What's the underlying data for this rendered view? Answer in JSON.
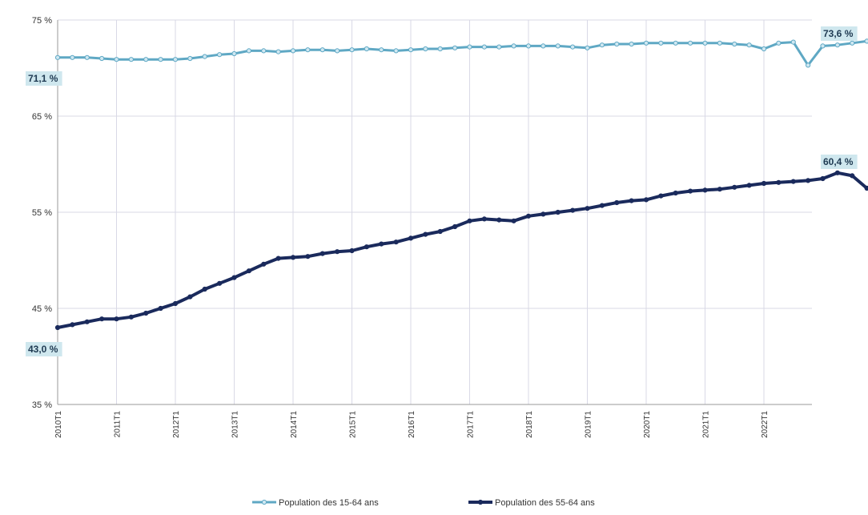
{
  "chart_data": {
    "type": "line",
    "title": "",
    "xlabel": "",
    "ylabel": "",
    "ylim": [
      35,
      75
    ],
    "y_ticks": [
      "35 %",
      "45 %",
      "55 %",
      "65 %",
      "75 %"
    ],
    "y_tick_values": [
      35,
      45,
      55,
      65,
      75
    ],
    "x_ticks": [
      "2010T1",
      "2011T1",
      "2012T1",
      "2013T1",
      "2014T1",
      "2015T1",
      "2016T1",
      "2017T1",
      "2018T1",
      "2019T1",
      "2020T1",
      "2021T1",
      "2022T1"
    ],
    "grid": true,
    "legend_position": "bottom",
    "series": [
      {
        "name": "Population des 15-64 ans",
        "color": "#5fa8c4",
        "start_label": "71,1 %",
        "end_label": "73,6 %",
        "values": [
          71.1,
          71.1,
          71.1,
          71.0,
          70.9,
          70.9,
          70.9,
          70.9,
          70.9,
          71.0,
          71.2,
          71.4,
          71.5,
          71.8,
          71.8,
          71.7,
          71.8,
          71.9,
          71.9,
          71.8,
          71.9,
          72.0,
          71.9,
          71.8,
          71.9,
          72.0,
          72.0,
          72.1,
          72.2,
          72.2,
          72.2,
          72.3,
          72.3,
          72.3,
          72.3,
          72.2,
          72.1,
          72.4,
          72.5,
          72.5,
          72.6,
          72.6,
          72.6,
          72.6,
          72.6,
          72.6,
          72.5,
          72.4,
          72.0,
          72.6,
          72.7,
          70.3,
          72.3,
          72.4,
          72.6,
          72.8,
          72.9,
          73.1,
          73.2,
          73.3,
          73.4,
          73.5,
          73.6,
          73.6,
          73.6
        ]
      },
      {
        "name": "Population des 55-64 ans",
        "color": "#1a2a5c",
        "start_label": "43,0 %",
        "end_label": "60,4 %",
        "values": [
          43.0,
          43.3,
          43.6,
          43.9,
          43.9,
          44.1,
          44.5,
          45.0,
          45.5,
          46.2,
          47.0,
          47.6,
          48.2,
          48.9,
          49.6,
          50.2,
          50.3,
          50.4,
          50.7,
          50.9,
          51.0,
          51.4,
          51.7,
          51.9,
          52.3,
          52.7,
          53.0,
          53.5,
          54.1,
          54.3,
          54.2,
          54.1,
          54.6,
          54.8,
          55.0,
          55.2,
          55.4,
          55.7,
          56.0,
          56.2,
          56.3,
          56.7,
          57.0,
          57.2,
          57.3,
          57.4,
          57.6,
          57.8,
          58.0,
          58.1,
          58.2,
          58.3,
          58.5,
          59.1,
          58.8,
          57.5,
          58.3,
          59.0,
          59.4,
          59.5,
          59.6,
          59.7,
          59.9,
          60.0,
          60.1,
          60.1,
          60.3,
          60.5,
          60.6,
          60.4
        ]
      }
    ]
  }
}
